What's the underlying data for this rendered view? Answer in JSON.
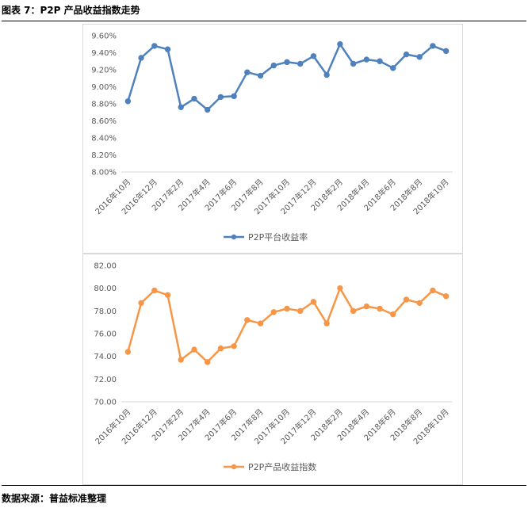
{
  "figure": {
    "title": "图表 7：P2P 产品收益指数走势",
    "source": "数据来源：普益标准整理"
  },
  "chart_data": [
    {
      "type": "line",
      "categories": [
        "2016年10月",
        "2016年11月",
        "2016年12月",
        "2017年1月",
        "2017年2月",
        "2017年3月",
        "2017年4月",
        "2017年5月",
        "2017年6月",
        "2017年7月",
        "2017年8月",
        "2017年9月",
        "2017年10月",
        "2017年11月",
        "2017年12月",
        "2018年1月",
        "2018年2月",
        "2018年3月",
        "2018年4月",
        "2018年5月",
        "2018年6月",
        "2018年7月",
        "2018年8月",
        "2018年9月",
        "2018年10月"
      ],
      "x_tick_labels": [
        "2016年10月",
        "2016年12月",
        "2017年2月",
        "2017年4月",
        "2017年6月",
        "2017年8月",
        "2017年10月",
        "2017年12月",
        "2018年2月",
        "2018年4月",
        "2018年6月",
        "2018年8月",
        "2018年10月"
      ],
      "series": [
        {
          "name": "P2P平台收益率",
          "color": "#4f81bd",
          "values": [
            8.83,
            9.34,
            9.48,
            9.44,
            8.76,
            8.86,
            8.73,
            8.88,
            8.89,
            9.17,
            9.13,
            9.25,
            9.29,
            9.27,
            9.36,
            9.14,
            9.5,
            9.27,
            9.32,
            9.3,
            9.22,
            9.38,
            9.35,
            9.48,
            9.42
          ]
        }
      ],
      "ylim": [
        8.0,
        9.6
      ],
      "y_ticks": [
        "8.00%",
        "8.20%",
        "8.40%",
        "8.60%",
        "8.80%",
        "9.00%",
        "9.20%",
        "9.40%",
        "9.60%"
      ],
      "y_unit": "%",
      "legend": "bottom",
      "grid": false
    },
    {
      "type": "line",
      "categories": [
        "2016年10月",
        "2016年11月",
        "2016年12月",
        "2017年1月",
        "2017年2月",
        "2017年3月",
        "2017年4月",
        "2017年5月",
        "2017年6月",
        "2017年7月",
        "2017年8月",
        "2017年9月",
        "2017年10月",
        "2017年11月",
        "2017年12月",
        "2018年1月",
        "2018年2月",
        "2018年3月",
        "2018年4月",
        "2018年5月",
        "2018年6月",
        "2018年7月",
        "2018年8月",
        "2018年9月",
        "2018年10月"
      ],
      "x_tick_labels": [
        "2016年10月",
        "2016年12月",
        "2017年2月",
        "2017年4月",
        "2017年6月",
        "2017年8月",
        "2017年10月",
        "2017年12月",
        "2018年2月",
        "2018年4月",
        "2018年6月",
        "2018年8月",
        "2018年10月"
      ],
      "series": [
        {
          "name": "P2P产品收益指数",
          "color": "#f79646",
          "values": [
            74.4,
            78.7,
            79.8,
            79.4,
            73.7,
            74.6,
            73.5,
            74.7,
            74.9,
            77.2,
            76.9,
            77.9,
            78.2,
            78.0,
            78.8,
            76.9,
            80.0,
            78.0,
            78.4,
            78.2,
            77.7,
            79.0,
            78.7,
            79.8,
            79.3
          ]
        }
      ],
      "ylim": [
        70.0,
        82.0
      ],
      "y_ticks": [
        "70.00",
        "72.00",
        "74.00",
        "76.00",
        "78.00",
        "80.00",
        "82.00"
      ],
      "legend": "bottom",
      "grid": false
    }
  ]
}
